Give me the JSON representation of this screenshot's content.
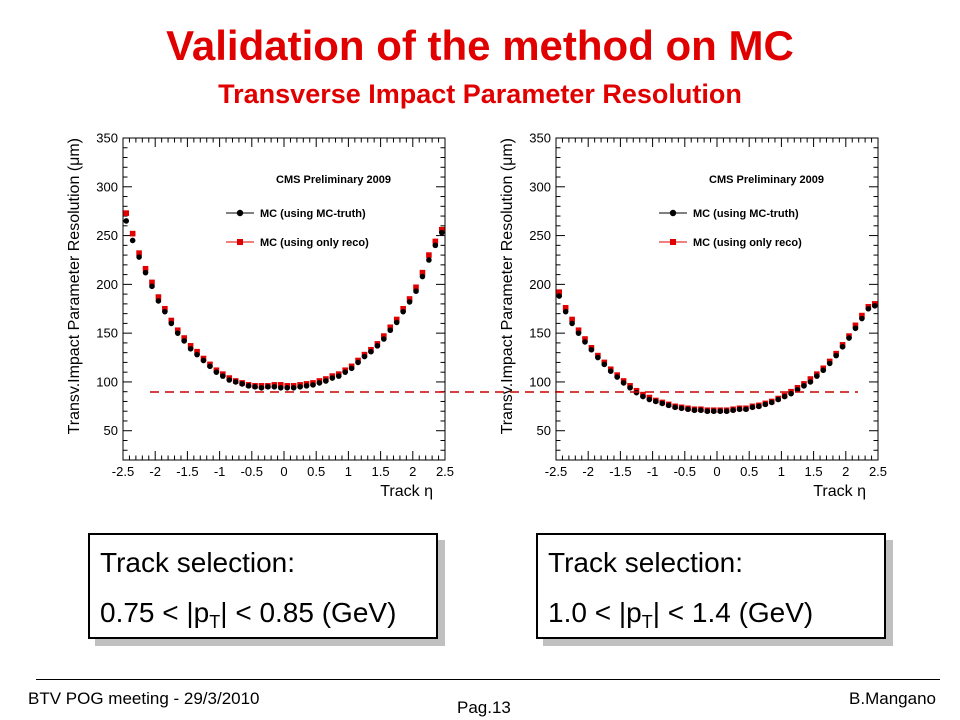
{
  "slide": {
    "title": "Validation of the method on MC",
    "subtitle": "Transverse Impact Parameter Resolution"
  },
  "chart_data": [
    {
      "type": "scatter",
      "title": "CMS Preliminary 2009",
      "xlabel": "Track η",
      "ylabel": "Transv.Impact Parameter Resolution (μm)",
      "xlim": [
        -2.5,
        2.5
      ],
      "ylim": [
        20,
        350
      ],
      "xticks": [
        -2.5,
        -2,
        -1.5,
        -1,
        -0.5,
        0,
        0.5,
        1,
        1.5,
        2,
        2.5
      ],
      "yticks": [
        50,
        100,
        150,
        200,
        250,
        300,
        350
      ],
      "legend_position": "top-right",
      "reference_line_y": 90,
      "x": [
        -2.45,
        -2.35,
        -2.25,
        -2.15,
        -2.05,
        -1.95,
        -1.85,
        -1.75,
        -1.65,
        -1.55,
        -1.45,
        -1.35,
        -1.25,
        -1.15,
        -1.05,
        -0.95,
        -0.85,
        -0.75,
        -0.65,
        -0.55,
        -0.45,
        -0.35,
        -0.25,
        -0.15,
        -0.05,
        0.05,
        0.15,
        0.25,
        0.35,
        0.45,
        0.55,
        0.65,
        0.75,
        0.85,
        0.95,
        1.05,
        1.15,
        1.25,
        1.35,
        1.45,
        1.55,
        1.65,
        1.75,
        1.85,
        1.95,
        2.05,
        2.15,
        2.25,
        2.35,
        2.45
      ],
      "series": [
        {
          "name": "MC (using MC-truth)",
          "color": "#000000",
          "marker": "circle",
          "values": [
            265,
            245,
            228,
            212,
            198,
            183,
            172,
            160,
            150,
            142,
            134,
            128,
            122,
            116,
            110,
            106,
            102,
            100,
            98,
            96,
            95,
            94,
            95,
            95,
            94,
            94,
            94,
            95,
            96,
            97,
            99,
            101,
            104,
            106,
            110,
            114,
            120,
            126,
            131,
            137,
            144,
            153,
            161,
            172,
            182,
            193,
            208,
            225,
            240,
            253
          ]
        },
        {
          "name": "MC (using only reco)",
          "color": "#e10000",
          "marker": "square",
          "values": [
            273,
            252,
            232,
            216,
            202,
            187,
            175,
            163,
            153,
            145,
            137,
            131,
            124,
            118,
            112,
            108,
            104,
            101,
            99,
            97,
            96,
            96,
            96,
            97,
            97,
            96,
            96,
            97,
            98,
            99,
            101,
            103,
            106,
            108,
            112,
            116,
            122,
            128,
            133,
            139,
            147,
            156,
            164,
            175,
            185,
            197,
            212,
            230,
            244,
            256
          ]
        }
      ]
    },
    {
      "type": "scatter",
      "title": "CMS Preliminary 2009",
      "xlabel": "Track η",
      "ylabel": "Transv.Impact Parameter Resolution (μm)",
      "xlim": [
        -2.5,
        2.5
      ],
      "ylim": [
        20,
        350
      ],
      "xticks": [
        -2.5,
        -2,
        -1.5,
        -1,
        -0.5,
        0,
        0.5,
        1,
        1.5,
        2,
        2.5
      ],
      "yticks": [
        50,
        100,
        150,
        200,
        250,
        300,
        350
      ],
      "legend_position": "top-right",
      "reference_line_y": 90,
      "x": [
        -2.45,
        -2.35,
        -2.25,
        -2.15,
        -2.05,
        -1.95,
        -1.85,
        -1.75,
        -1.65,
        -1.55,
        -1.45,
        -1.35,
        -1.25,
        -1.15,
        -1.05,
        -0.95,
        -0.85,
        -0.75,
        -0.65,
        -0.55,
        -0.45,
        -0.35,
        -0.25,
        -0.15,
        -0.05,
        0.05,
        0.15,
        0.25,
        0.35,
        0.45,
        0.55,
        0.65,
        0.75,
        0.85,
        0.95,
        1.05,
        1.15,
        1.25,
        1.35,
        1.45,
        1.55,
        1.65,
        1.75,
        1.85,
        1.95,
        2.05,
        2.15,
        2.25,
        2.35,
        2.45
      ],
      "series": [
        {
          "name": "MC (using MC-truth)",
          "color": "#000000",
          "marker": "circle",
          "values": [
            188,
            172,
            160,
            150,
            141,
            133,
            125,
            118,
            111,
            105,
            99,
            94,
            89,
            85,
            82,
            80,
            78,
            76,
            74,
            73,
            72,
            71,
            71,
            70,
            70,
            70,
            70,
            71,
            72,
            72,
            74,
            75,
            77,
            79,
            82,
            85,
            88,
            92,
            96,
            100,
            106,
            112,
            119,
            127,
            136,
            145,
            155,
            165,
            175,
            178
          ]
        },
        {
          "name": "MC (using only reco)",
          "color": "#e10000",
          "marker": "square",
          "values": [
            192,
            176,
            164,
            153,
            144,
            135,
            127,
            120,
            113,
            107,
            101,
            96,
            91,
            87,
            84,
            81,
            79,
            77,
            75,
            74,
            73,
            72,
            72,
            71,
            71,
            71,
            71,
            72,
            73,
            73,
            75,
            76,
            78,
            80,
            83,
            86,
            90,
            94,
            98,
            103,
            108,
            114,
            121,
            129,
            138,
            147,
            158,
            168,
            177,
            180
          ]
        }
      ]
    }
  ],
  "selection_boxes": [
    {
      "heading": "Track selection:",
      "prefix": "0.75 < |p",
      "sub": "T",
      "suffix": "| < 0.85 (GeV)"
    },
    {
      "heading": "Track selection:",
      "prefix": "1.0 < |p",
      "sub": "T",
      "suffix": "| < 1.4 (GeV)"
    }
  ],
  "footer": {
    "left": "BTV POG meeting - 29/3/2010",
    "center": "Pag.13",
    "right": "B.Mangano"
  }
}
